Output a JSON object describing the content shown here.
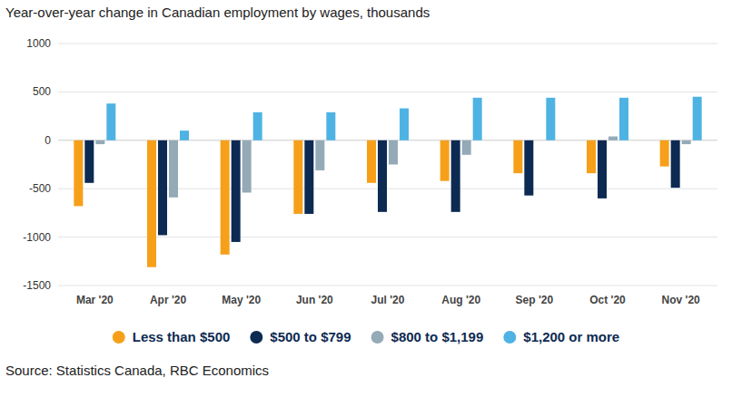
{
  "chart_data": {
    "type": "bar",
    "title": "Year-over-year change in Canadian employment by wages, thousands",
    "source": "Source: Statistics Canada, RBC Economics",
    "categories": [
      "Mar '20",
      "Apr '20",
      "May '20",
      "Jun '20",
      "Jul '20",
      "Aug '20",
      "Sep '20",
      "Oct '20",
      "Nov '20"
    ],
    "series": [
      {
        "name": "Less than $500",
        "color": "#f6a01a",
        "values": [
          -680,
          -1310,
          -1180,
          -760,
          -440,
          -420,
          -340,
          -340,
          -270
        ]
      },
      {
        "name": "$500 to $799",
        "color": "#0d2a52",
        "values": [
          -440,
          -980,
          -1050,
          -760,
          -740,
          -740,
          -570,
          -600,
          -490
        ]
      },
      {
        "name": "$800 to $1,199",
        "color": "#94aab7",
        "values": [
          -40,
          -590,
          -540,
          -310,
          -250,
          -150,
          0,
          40,
          -40
        ]
      },
      {
        "name": "$1,200 or more",
        "color": "#4eb3e3",
        "values": [
          380,
          100,
          290,
          290,
          330,
          440,
          440,
          440,
          450
        ]
      }
    ],
    "ylim": [
      -1500,
      1000
    ],
    "yticks": [
      -1500,
      -1000,
      -500,
      0,
      500,
      1000
    ],
    "grid": true,
    "legend": "bottom"
  }
}
